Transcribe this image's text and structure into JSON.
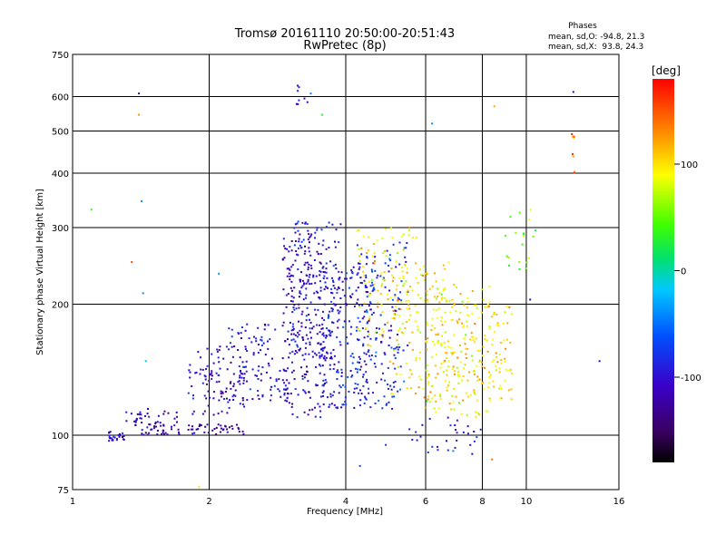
{
  "chart_data": {
    "type": "scatter",
    "title": "Tromsø 20161110 20:50:00-20:51:43",
    "subtitle": "RwPretec (8p)",
    "xlabel": "Frequency [MHz]",
    "ylabel": "Stationary phase Virtual Height [km]",
    "xscale": "log",
    "yscale": "log",
    "xlim": [
      1,
      16
    ],
    "ylim": [
      75,
      750
    ],
    "xticks": [
      1,
      2,
      4,
      6,
      8,
      10,
      16
    ],
    "yticks": [
      75,
      100,
      200,
      300,
      400,
      500,
      600,
      750
    ],
    "grid": true,
    "legend": {
      "title": "Phases",
      "lines": [
        "mean, sd,O: -94.8, 21.3",
        "mean, sd,X:  93.8, 24.3"
      ],
      "placement": "top-right"
    },
    "colorbar": {
      "label": "[deg]",
      "min": -180,
      "max": 180,
      "ticks": [
        100,
        0,
        -100
      ],
      "colormap": "rainbow"
    },
    "clusters": [
      {
        "x_range": [
          1.2,
          1.3
        ],
        "y_range": [
          97,
          102
        ],
        "phase": -110,
        "count": 25
      },
      {
        "x_range": [
          1.3,
          1.7
        ],
        "y_range": [
          105,
          115
        ],
        "phase": -120,
        "count": 35
      },
      {
        "x_range": [
          1.4,
          2.4
        ],
        "y_range": [
          100,
          106
        ],
        "phase": -125,
        "count": 70
      },
      {
        "x_range": [
          1.8,
          2.4
        ],
        "y_range": [
          110,
          160
        ],
        "phase": -105,
        "count": 90
      },
      {
        "x_range": [
          2.2,
          3.0
        ],
        "y_range": [
          120,
          180
        ],
        "phase": -100,
        "count": 120
      },
      {
        "x_range": [
          2.9,
          3.6
        ],
        "y_range": [
          110,
          290
        ],
        "phase": -110,
        "count": 180
      },
      {
        "x_range": [
          3.0,
          3.9
        ],
        "y_range": [
          150,
          310
        ],
        "phase": -95,
        "count": 170
      },
      {
        "x_range": [
          3.5,
          4.5
        ],
        "y_range": [
          115,
          250
        ],
        "phase": -95,
        "count": 180
      },
      {
        "x_range": [
          4.2,
          5.5
        ],
        "y_range": [
          115,
          280
        ],
        "phase": -80,
        "count": 170
      },
      {
        "x_range": [
          4.2,
          5.8
        ],
        "y_range": [
          160,
          300
        ],
        "phase": 95,
        "count": 110
      },
      {
        "x_range": [
          5.0,
          7.0
        ],
        "y_range": [
          120,
          250
        ],
        "phase": 100,
        "count": 140
      },
      {
        "x_range": [
          6.0,
          8.5
        ],
        "y_range": [
          110,
          220
        ],
        "phase": 90,
        "count": 120
      },
      {
        "x_range": [
          7.0,
          9.3
        ],
        "y_range": [
          120,
          200
        ],
        "phase": 105,
        "count": 110
      },
      {
        "x_range": [
          5.5,
          8.0
        ],
        "y_range": [
          90,
          110
        ],
        "phase": -90,
        "count": 30
      },
      {
        "x_range": [
          3.1,
          3.3
        ],
        "y_range": [
          570,
          640
        ],
        "phase": -110,
        "count": 8
      },
      {
        "x_range": [
          12.6,
          12.8
        ],
        "y_range": [
          400,
          530
        ],
        "phase": 140,
        "count": 8
      },
      {
        "x_range": [
          9.0,
          10.5
        ],
        "y_range": [
          240,
          330
        ],
        "phase": 60,
        "count": 20
      }
    ],
    "points": [
      {
        "x": 1.1,
        "y": 330,
        "phase": 40
      },
      {
        "x": 1.4,
        "y": 610,
        "phase": -130
      },
      {
        "x": 1.4,
        "y": 545,
        "phase": 130
      },
      {
        "x": 1.42,
        "y": 345,
        "phase": -40
      },
      {
        "x": 1.43,
        "y": 212,
        "phase": -40
      },
      {
        "x": 1.45,
        "y": 148,
        "phase": -20
      },
      {
        "x": 1.35,
        "y": 250,
        "phase": 150
      },
      {
        "x": 3.35,
        "y": 610,
        "phase": -40
      },
      {
        "x": 3.55,
        "y": 545,
        "phase": 30
      },
      {
        "x": 6.2,
        "y": 520,
        "phase": -40
      },
      {
        "x": 8.5,
        "y": 570,
        "phase": 120
      },
      {
        "x": 12.7,
        "y": 615,
        "phase": -110
      },
      {
        "x": 14.5,
        "y": 148,
        "phase": -110
      },
      {
        "x": 10.2,
        "y": 205,
        "phase": -120
      },
      {
        "x": 2.1,
        "y": 235,
        "phase": -30
      },
      {
        "x": 1.9,
        "y": 76,
        "phase": 100
      },
      {
        "x": 4.3,
        "y": 85,
        "phase": -60
      },
      {
        "x": 4.9,
        "y": 95,
        "phase": -80
      },
      {
        "x": 8.4,
        "y": 88,
        "phase": 140
      },
      {
        "x": 6.9,
        "y": 92,
        "phase": -40
      }
    ]
  }
}
